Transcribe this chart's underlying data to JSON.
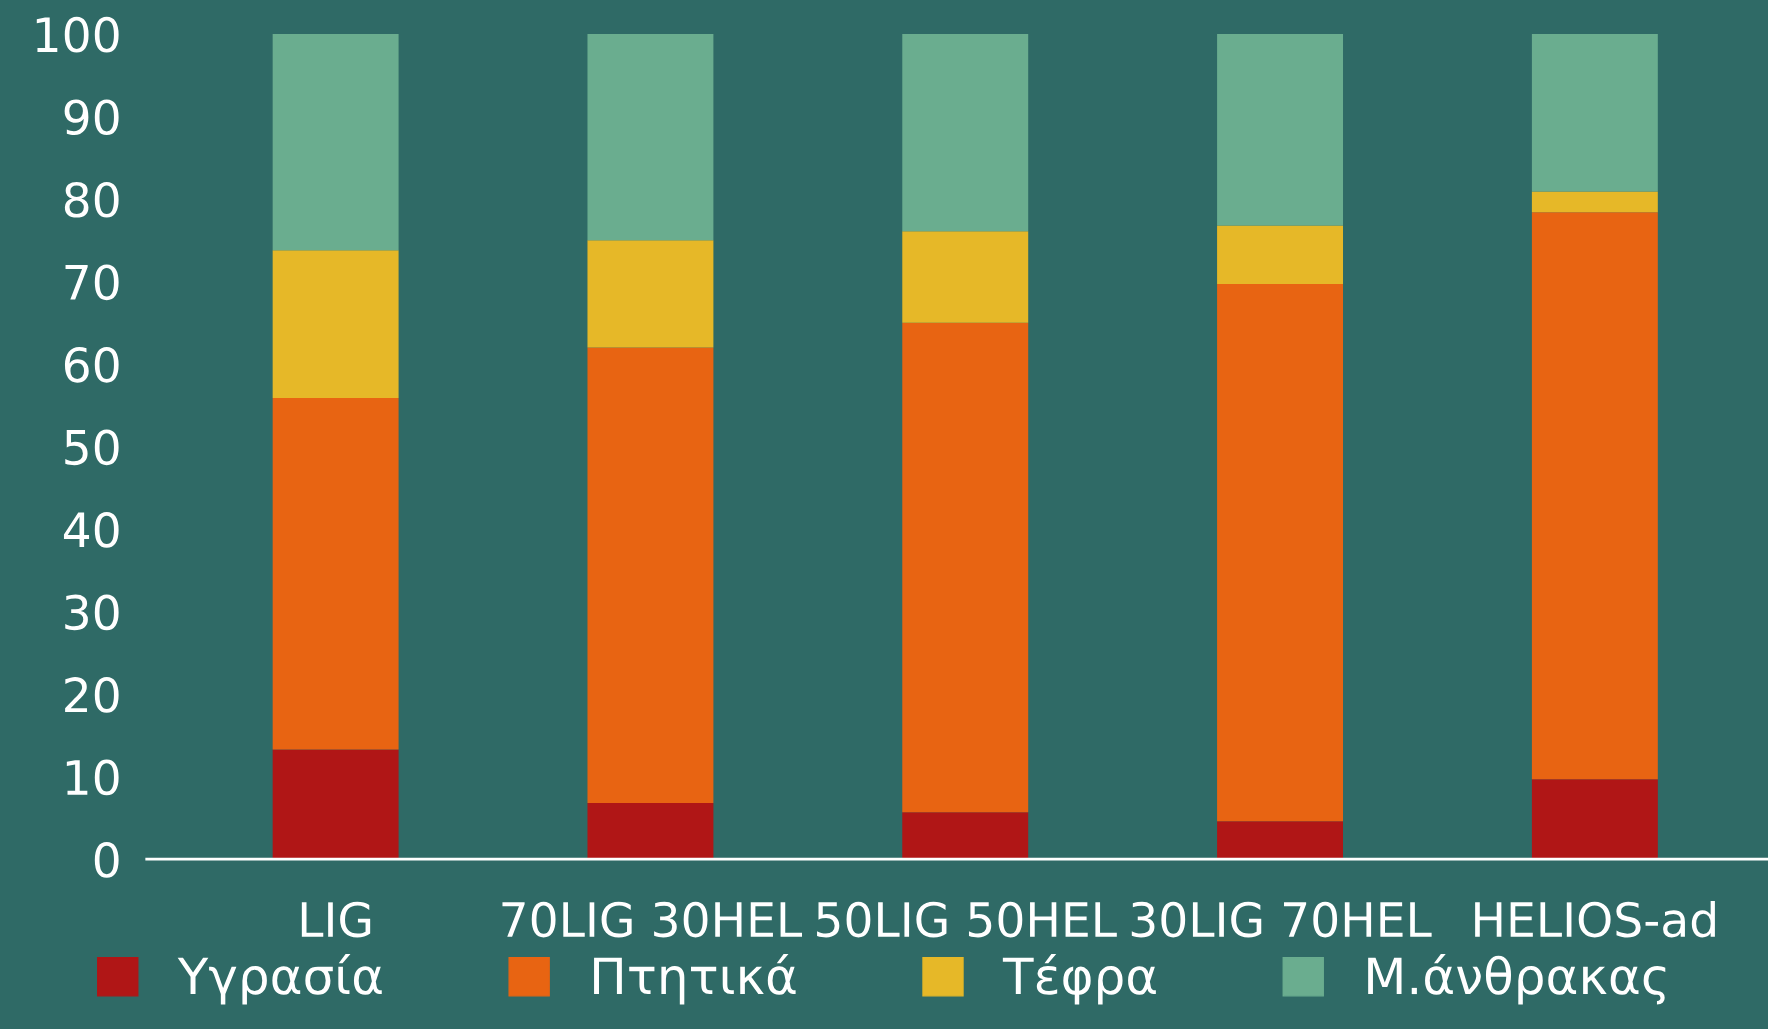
{
  "chart_data": {
    "type": "bar",
    "stacked": true,
    "categories": [
      "LIG",
      "70LIG 30HEL",
      "50LIG 50HEL",
      "30LIG 70HEL",
      "HELIOS-ad"
    ],
    "series": [
      {
        "name": "Υγρασία",
        "color": "#b01616",
        "values": [
          13.3,
          6.8,
          5.7,
          4.6,
          9.7
        ]
      },
      {
        "name": "Πτητικά",
        "color": "#e86412",
        "values": [
          42.6,
          55.2,
          59.3,
          65.1,
          68.7
        ]
      },
      {
        "name": "Τέφρα",
        "color": "#e6b828",
        "values": [
          17.9,
          13.0,
          11.1,
          7.1,
          2.5
        ]
      },
      {
        "name": "Μ.άνθρακας",
        "color": "#6aad8f",
        "values": [
          26.2,
          25.0,
          23.9,
          23.2,
          19.1
        ]
      }
    ],
    "ylim": [
      0,
      100
    ],
    "yticks": [
      0,
      10,
      20,
      30,
      40,
      50,
      60,
      70,
      80,
      90,
      100
    ],
    "grid": false,
    "legend": "bottom"
  }
}
